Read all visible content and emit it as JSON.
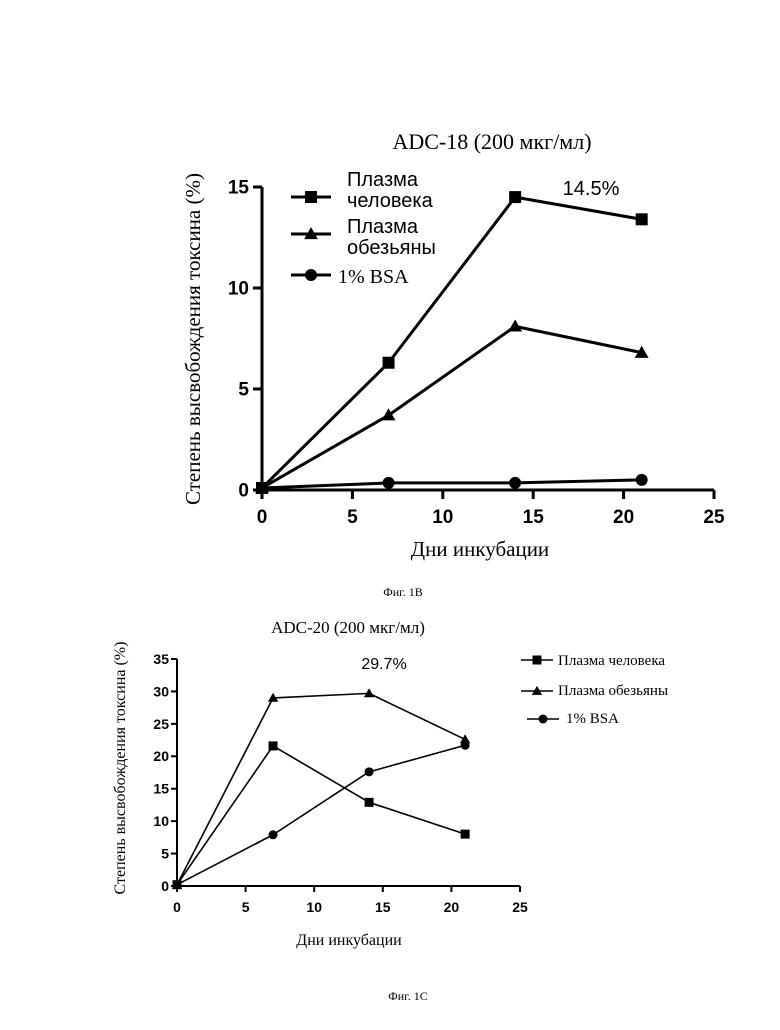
{
  "chart_data": [
    {
      "type": "line",
      "title": "ADC-18 (200 мкг/мл)",
      "xlabel": "Дни инкубации",
      "ylabel": "Степень высвобождения токсина (%)",
      "xlim": [
        0,
        25
      ],
      "ylim": [
        0,
        15
      ],
      "xticks": [
        "0",
        "5",
        "10",
        "15",
        "20",
        "25"
      ],
      "yticks": [
        "0",
        "5",
        "10",
        "15"
      ],
      "annotation": "14.5%",
      "caption": "Фиг. 1В",
      "grid": false,
      "legend": "top-left",
      "series": [
        {
          "name": "Плазма человека",
          "legend_lines": [
            "Плазма",
            "человека"
          ],
          "marker": "square",
          "x": [
            0,
            7,
            14,
            21
          ],
          "y": [
            0.1,
            6.3,
            14.5,
            13.4
          ]
        },
        {
          "name": "Плазма обезьяны",
          "legend_lines": [
            "Плазма",
            "обезьяны"
          ],
          "marker": "triangle",
          "x": [
            0,
            7,
            14,
            21
          ],
          "y": [
            0.1,
            3.7,
            8.1,
            6.8
          ]
        },
        {
          "name": "1% BSA",
          "legend_lines": [
            "1% BSA"
          ],
          "marker": "circle",
          "x": [
            0,
            7,
            14,
            21
          ],
          "y": [
            0.1,
            0.35,
            0.35,
            0.5
          ]
        }
      ]
    },
    {
      "type": "line",
      "title": "ADC-20 (200 мкг/мл)",
      "xlabel": "Дни инкубации",
      "ylabel": "Степень высвобождения токсина (%)",
      "xlim": [
        0,
        25
      ],
      "ylim": [
        0,
        35
      ],
      "xticks": [
        "0",
        "5",
        "10",
        "15",
        "20",
        "25"
      ],
      "yticks": [
        "0",
        "5",
        "10",
        "15",
        "20",
        "25",
        "30",
        "35"
      ],
      "annotation": "29.7%",
      "caption": "Фиг. 1С",
      "grid": false,
      "legend": "right",
      "series": [
        {
          "name": "Плазма человека",
          "legend_lines": [
            "Плазма человека"
          ],
          "marker": "square",
          "x": [
            0,
            7,
            14,
            21
          ],
          "y": [
            0.2,
            21.6,
            12.9,
            8.0
          ]
        },
        {
          "name": "Плазма обезьяны",
          "legend_lines": [
            "Плазма обезьяны"
          ],
          "marker": "triangle",
          "x": [
            0,
            7,
            14,
            21
          ],
          "y": [
            0.2,
            29.0,
            29.7,
            22.6
          ]
        },
        {
          "name": "1% BSA",
          "legend_lines": [
            "1% BSA"
          ],
          "marker": "circle",
          "x": [
            0,
            7,
            14,
            21
          ],
          "y": [
            0.2,
            7.9,
            17.6,
            21.7
          ]
        }
      ]
    }
  ],
  "colors": {
    "ink": "#000000",
    "background": "#ffffff"
  }
}
